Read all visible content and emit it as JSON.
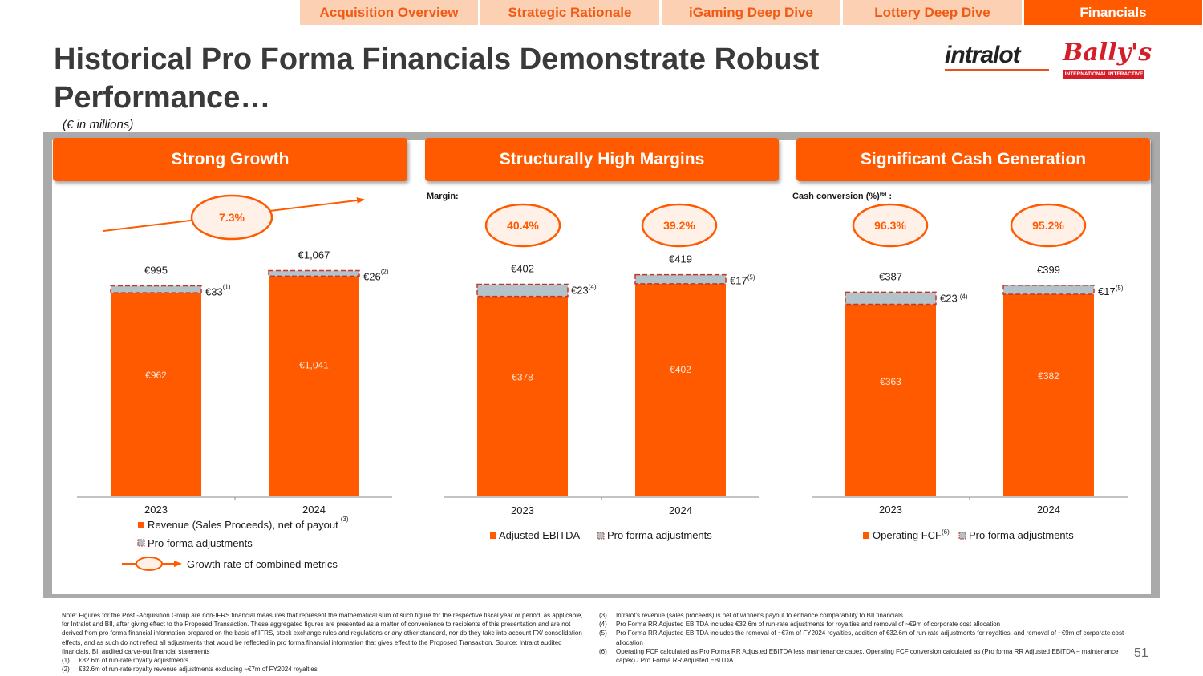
{
  "nav": {
    "tabs": [
      {
        "label": "Acquisition Overview",
        "active": false
      },
      {
        "label": "Strategic Rationale",
        "active": false
      },
      {
        "label": "iGaming Deep Dive",
        "active": false
      },
      {
        "label": "Lottery Deep Dive",
        "active": false
      },
      {
        "label": "Financials",
        "active": true
      }
    ]
  },
  "header": {
    "title": "Historical Pro Forma Financials Demonstrate Robust Performance…",
    "subtitle": "(€ in millions)"
  },
  "logos": {
    "intralot": "intralot",
    "ballys": "Bally's",
    "ballys_sub": "INTERNATIONAL INTERACTIVE"
  },
  "colors": {
    "accent": "#ff5a00",
    "adjustment": "#b4c3ca",
    "adjustment_border": "#c0392b"
  },
  "sections": {
    "growth": {
      "title": "Strong Growth"
    },
    "margins": {
      "title": "Structurally High Margins",
      "caption": "Margin:"
    },
    "cash": {
      "title": "Significant Cash Generation",
      "caption": "Cash conversion (%)",
      "caption_sup": "(6)",
      "caption_colon": " :"
    }
  },
  "chart_data": [
    {
      "type": "bar",
      "title": "Strong Growth",
      "stacked": true,
      "categories": [
        "2023",
        "2024"
      ],
      "series": [
        {
          "name": "Revenue (Sales Proceeds), net of payout",
          "values": [
            962,
            1041
          ],
          "labels": [
            "€962",
            "€1,041"
          ]
        },
        {
          "name": "Pro forma adjustments",
          "values": [
            33,
            26
          ],
          "labels": [
            "€33",
            "€26"
          ],
          "footnotes": [
            "(1)",
            "(2)"
          ]
        }
      ],
      "totals": [
        995,
        1067
      ],
      "total_labels": [
        "€995",
        "€1,067"
      ],
      "growth_rate": "7.3%",
      "legend": [
        {
          "label": "Revenue (Sales Proceeds), net of payout",
          "sup": "(3)"
        },
        {
          "label": "Pro forma adjustments"
        },
        {
          "label": "Growth rate of combined metrics"
        }
      ],
      "ylim": [
        0,
        1300
      ]
    },
    {
      "type": "bar",
      "title": "Structurally High Margins",
      "stacked": true,
      "categories": [
        "2023",
        "2024"
      ],
      "series": [
        {
          "name": "Adjusted EBITDA",
          "values": [
            378,
            402
          ],
          "labels": [
            "€378",
            "€402"
          ]
        },
        {
          "name": "Pro forma adjustments",
          "values": [
            23,
            17
          ],
          "labels": [
            "€23",
            "€17"
          ],
          "footnotes": [
            "(4)",
            "(5)"
          ]
        }
      ],
      "totals": [
        402,
        419
      ],
      "total_labels": [
        "€402",
        "€419"
      ],
      "margins": [
        "40.4%",
        "39.2%"
      ],
      "legend": [
        {
          "label": "Adjusted EBITDA"
        },
        {
          "label": "Pro forma adjustments"
        }
      ],
      "ylim": [
        0,
        520
      ]
    },
    {
      "type": "bar",
      "title": "Significant Cash Generation",
      "stacked": true,
      "categories": [
        "2023",
        "2024"
      ],
      "series": [
        {
          "name": "Operating FCF",
          "values": [
            363,
            382
          ],
          "labels": [
            "€363",
            "€382"
          ]
        },
        {
          "name": "Pro forma adjustments",
          "values": [
            23,
            17
          ],
          "labels": [
            "€23",
            "€17"
          ],
          "footnotes": [
            "(4)",
            "(5)"
          ]
        }
      ],
      "totals": [
        387,
        399
      ],
      "total_labels": [
        "€387",
        "€399"
      ],
      "cash_conversion": [
        "96.3%",
        "95.2%"
      ],
      "legend": [
        {
          "label": "Operating FCF",
          "sup": "(6)"
        },
        {
          "label": "Pro forma adjustments"
        }
      ],
      "ylim": [
        0,
        520
      ]
    }
  ],
  "footnotes": {
    "note": "Note: Figures for the Post -Acquisition Group are non-IFRS financial measures that represent the mathematical sum of such figure for the respective fiscal year or period, as applicable, for Intralot and BII, after giving effect to the Proposed Transaction. These aggregated figures are presented as a matter of convenience to recipients of this presentation and are not derived from pro forma financial information prepared on the basis of IFRS, stock exchange rules and regulations or any other standard, nor do they take into account FX/ consolidation effects, and as such do not reflect all adjustments that would be reflected in pro forma financial information that gives effect to the Proposed Transaction. Source: Intralot audited financials, BII audited carve-out financial statements",
    "left_items": [
      {
        "num": "(1)",
        "text": "€32.6m of run-rate royalty adjustments"
      },
      {
        "num": "(2)",
        "text": "€32.6m of run-rate royalty revenue adjustments excluding ~€7m of FY2024 royalties"
      }
    ],
    "right_items": [
      {
        "num": "(3)",
        "text": "Intralot's revenue (sales proceeds) is net of winner's payout to enhance comparability to BII financials"
      },
      {
        "num": "(4)",
        "text": "Pro Forma RR Adjusted EBITDA includes €32.6m of run-rate adjustments for royalties and removal of ~€9m of corporate cost allocation"
      },
      {
        "num": "(5)",
        "text": "Pro Forma RR Adjusted EBITDA includes the removal of ~€7m of FY2024 royalties, addition of €32.6m of run-rate adjustments for royalties, and removal of ~€9m of corporate cost allocation"
      },
      {
        "num": "(6)",
        "text": "Operating FCF calculated as Pro Forma RR Adjusted EBITDA less maintenance capex. Operating FCF conversion calculated as (Pro forma RR Adjusted EBITDA – maintenance capex) / Pro Forma RR Adjusted EBITDA"
      }
    ]
  },
  "page": {
    "number": "51"
  }
}
